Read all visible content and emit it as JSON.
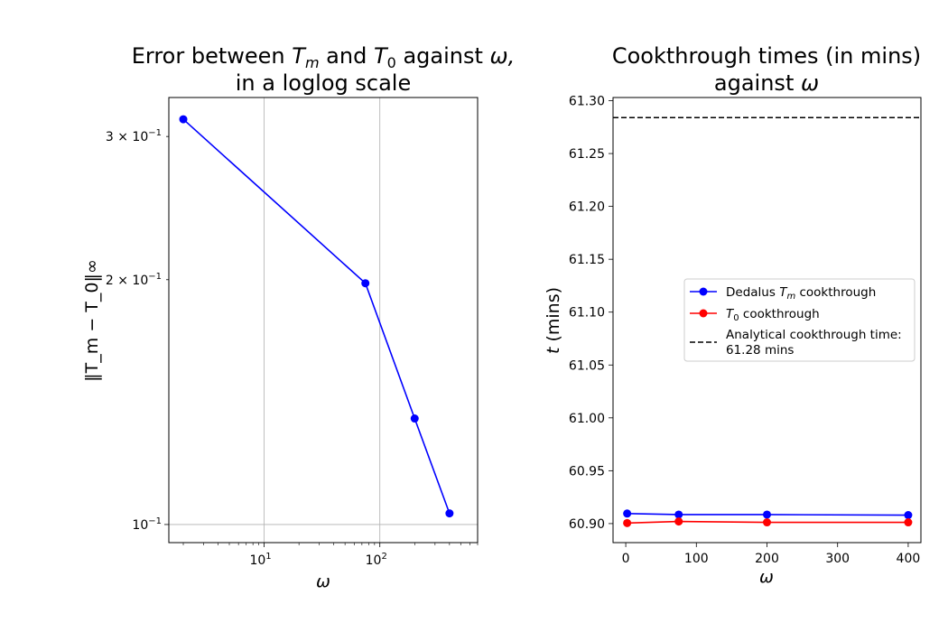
{
  "chart_data": [
    {
      "type": "line",
      "scale": "loglog",
      "title_line1_prefix": "Error between ",
      "title_line1_Tm": "T",
      "title_line1_Tm_sub": "m",
      "title_line1_mid": " and ",
      "title_line1_T0": "T",
      "title_line1_T0_sub": "0",
      "title_line1_suffix": " against ",
      "title_line1_omega": "ω,",
      "title_line2": "in a loglog scale",
      "xlabel": "ω",
      "ylabel": "‖T_m − T_0‖∞",
      "xlim": [
        1.5,
        700
      ],
      "ylim": [
        0.095,
        0.335
      ],
      "grid": "x",
      "x_ticks": [
        {
          "value": 10,
          "label": "10",
          "exp": "1"
        },
        {
          "value": 100,
          "label": "10",
          "exp": "2"
        }
      ],
      "y_ticks": [
        {
          "value": 0.1,
          "label": "10",
          "exp": "−1",
          "mant": ""
        },
        {
          "value": 0.2,
          "label": "10",
          "exp": "−1",
          "mant": "2 × "
        },
        {
          "value": 0.3,
          "label": "10",
          "exp": "−1",
          "mant": "3 × "
        }
      ],
      "series": [
        {
          "color": "#0000ff",
          "x": [
            2,
            75,
            200,
            400
          ],
          "y": [
            0.315,
            0.198,
            0.135,
            0.1032
          ]
        }
      ]
    },
    {
      "type": "line",
      "title_line1": "Cookthrough times (in mins)",
      "title_line2_prefix": "against ",
      "title_line2_omega": "ω",
      "xlabel": "ω",
      "ylabel_t": "t",
      "ylabel_rest": " (mins)",
      "xlim": [
        -18,
        418
      ],
      "ylim": [
        60.882,
        61.303
      ],
      "x_ticks": [
        0,
        100,
        200,
        300,
        400
      ],
      "y_ticks": [
        "60.90",
        "60.95",
        "61.00",
        "61.05",
        "61.10",
        "61.15",
        "61.20",
        "61.25",
        "61.30"
      ],
      "series": [
        {
          "name_prefix": "Dedalus ",
          "name_T": "T",
          "name_sub": "m",
          "name_suffix": " cookthrough",
          "color": "#0000ff",
          "x": [
            2,
            75,
            200,
            400
          ],
          "y": [
            60.9095,
            60.9085,
            60.9085,
            60.908
          ]
        },
        {
          "name_T": "T",
          "name_sub": "0",
          "name_suffix": " cookthrough",
          "color": "#ff0000",
          "x": [
            2,
            75,
            200,
            400
          ],
          "y": [
            60.9005,
            60.902,
            60.9012,
            60.9012
          ]
        }
      ],
      "reference_line": {
        "label_line1": "Analytical cookthrough time:",
        "label_line2": "61.28 mins",
        "value": 61.284,
        "color": "#000000",
        "style": "dashed"
      },
      "legend_position": "center-right"
    }
  ]
}
